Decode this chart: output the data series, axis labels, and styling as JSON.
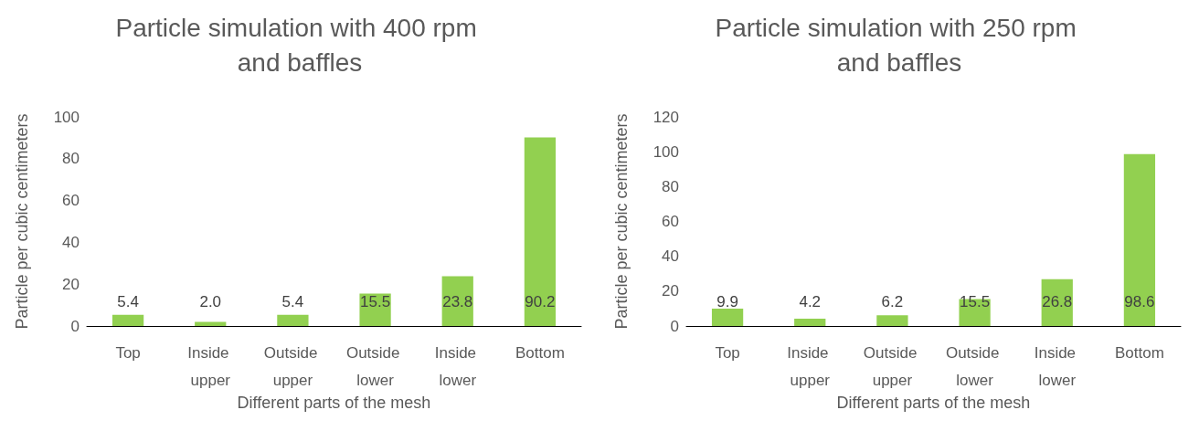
{
  "chart_data": [
    {
      "type": "bar",
      "title": "Particle simulation with 400 rpm and baffles",
      "xlabel": "Different parts of the mesh",
      "ylabel": "Particle per cubic centimeters",
      "categories": [
        "Top",
        "Inside upper",
        "Outside upper",
        "Outside lower",
        "Inside lower",
        "Bottom"
      ],
      "values": [
        5.4,
        2.0,
        5.4,
        15.5,
        23.8,
        90.2
      ],
      "value_labels": [
        "5.4",
        "2.0",
        "5.4",
        "15.5",
        "23.8",
        "90.2"
      ],
      "color": "#92d050",
      "ylim": [
        0,
        100
      ],
      "yticks": [
        0,
        20,
        40,
        60,
        80,
        100
      ]
    },
    {
      "type": "bar",
      "title": "Particle simulation with 250 rpm and baffles",
      "xlabel": "Different parts of the mesh",
      "ylabel": "Particle per cubic centimeters",
      "categories": [
        "Top",
        "Inside upper",
        "Outside upper",
        "Outside lower",
        "Inside lower",
        "Bottom"
      ],
      "values": [
        9.9,
        4.2,
        6.2,
        15.5,
        26.8,
        98.6
      ],
      "value_labels": [
        "9.9",
        "4.2",
        "6.2",
        "15.5",
        "26.8",
        "98.6"
      ],
      "color": "#92d050",
      "ylim": [
        0,
        120
      ],
      "yticks": [
        0,
        20,
        40,
        60,
        80,
        100,
        120
      ]
    }
  ]
}
